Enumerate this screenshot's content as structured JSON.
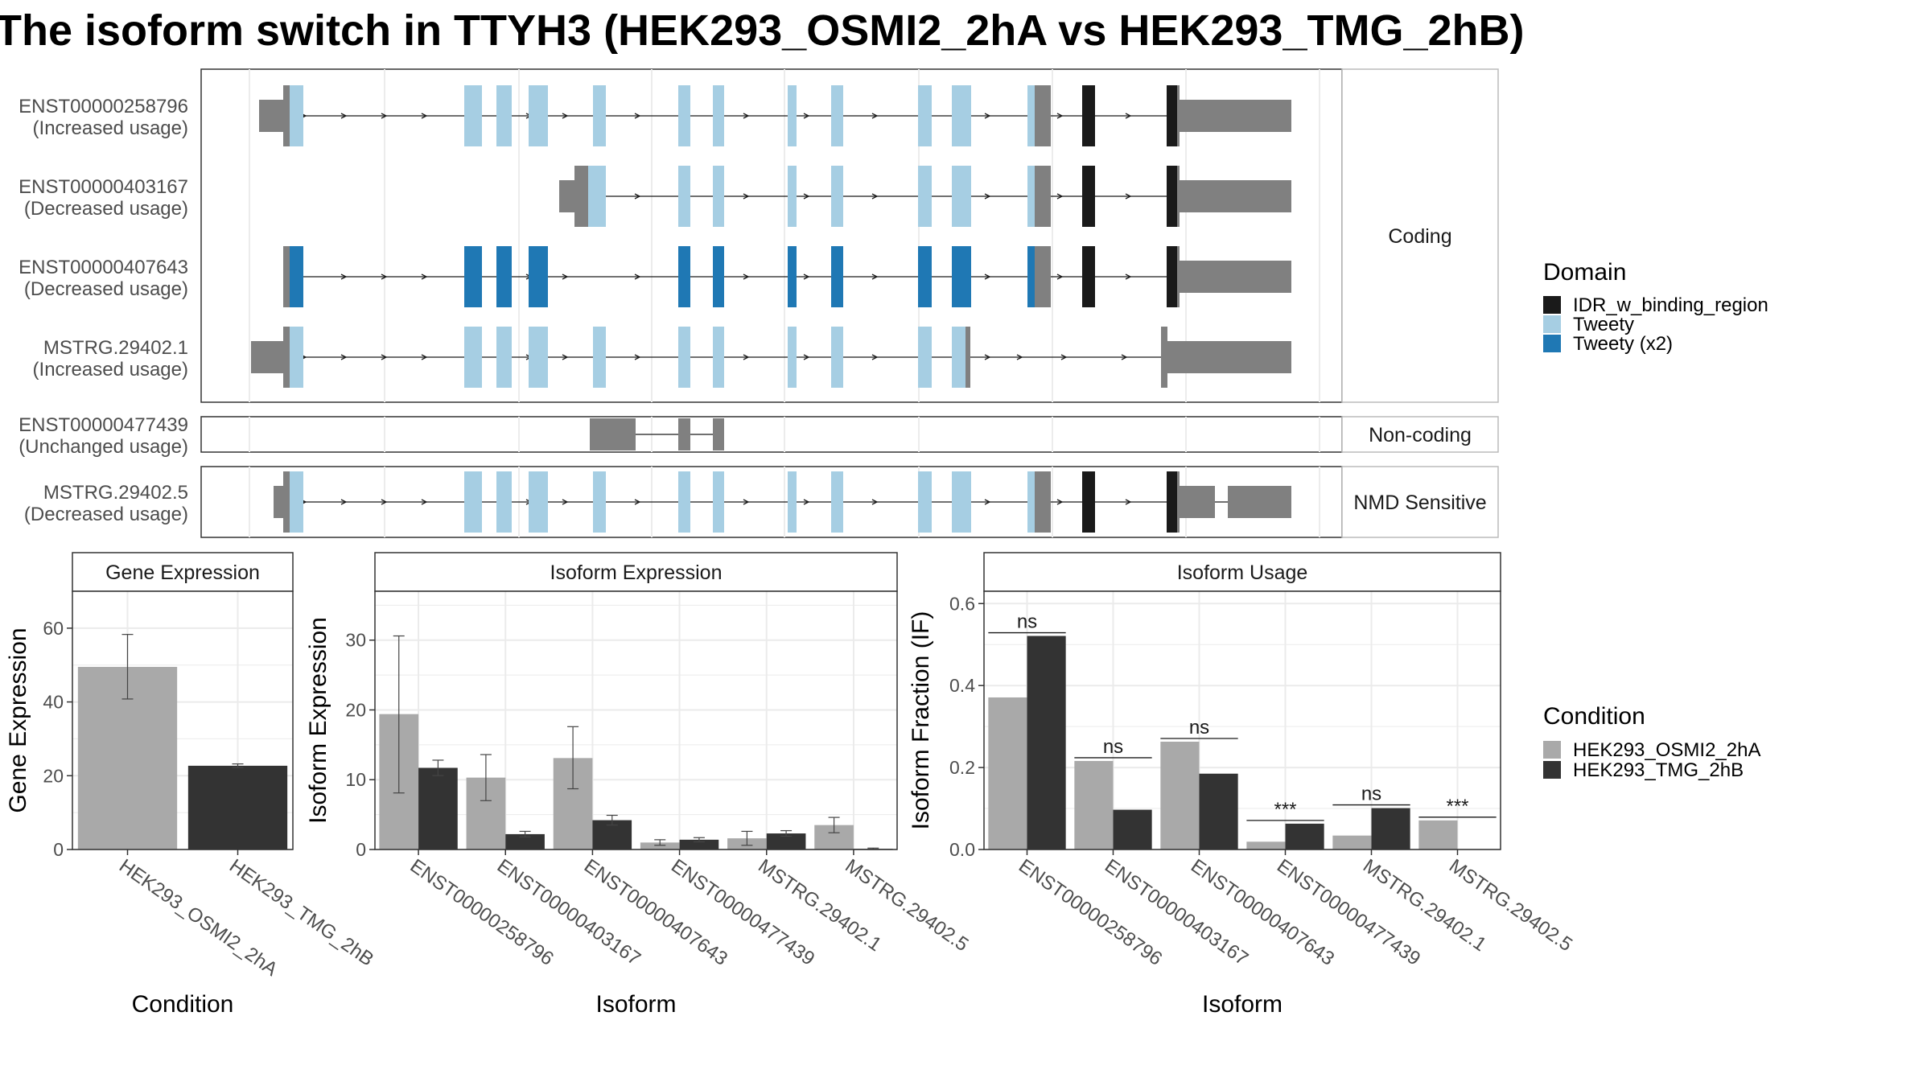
{
  "title": "The isoform switch in TTYH3 (HEK293_OSMI2_2hA vs HEK293_TMG_2hB)",
  "colors": {
    "utr": "#808080",
    "IDR_w_binding_region": "#1a1a1a",
    "Tweety": "#a6cee3",
    "Tweety_x2": "#1f78b4",
    "HEK293_OSMI2_2hA": "#a9a9a9",
    "HEK293_TMG_2hB": "#333333"
  },
  "structure": {
    "facets": [
      "Coding",
      "Non-coding",
      "NMD Sensitive"
    ],
    "transcripts": [
      {
        "id": "ENST00000258796",
        "usage": "(Increased usage)",
        "facet": "Coding",
        "domain": "Tweety"
      },
      {
        "id": "ENST00000403167",
        "usage": "(Decreased usage)",
        "facet": "Coding",
        "domain": "Tweety"
      },
      {
        "id": "ENST00000407643",
        "usage": "(Decreased usage)",
        "facet": "Coding",
        "domain": "Tweety_x2"
      },
      {
        "id": "MSTRG.29402.1",
        "usage": "(Increased usage)",
        "facet": "Coding",
        "domain": "Tweety"
      },
      {
        "id": "ENST00000477439",
        "usage": "(Unchanged usage)",
        "facet": "Non-coding",
        "domain": "none"
      },
      {
        "id": "MSTRG.29402.5",
        "usage": "(Decreased usage)",
        "facet": "NMD Sensitive",
        "domain": "Tweety"
      }
    ],
    "legend": {
      "title": "Domain",
      "items": [
        {
          "key": "IDR_w_binding_region",
          "label": "IDR_w_binding_region"
        },
        {
          "key": "Tweety",
          "label": "Tweety"
        },
        {
          "key": "Tweety_x2",
          "label": "Tweety (x2)"
        }
      ]
    }
  },
  "chart_data": [
    {
      "type": "bar",
      "panel": "Gene Expression",
      "categories": [
        "HEK293_OSMI2_2hA",
        "HEK293_TMG_2hB"
      ],
      "values": [
        49.5,
        22.7
      ],
      "errors": [
        [
          40.8,
          58.3
        ],
        [
          22.2,
          23.2
        ]
      ],
      "xlabel": "Condition",
      "ylabel": "Gene Expression",
      "ylim": [
        0,
        70
      ],
      "yticks": [
        0,
        20,
        40,
        60
      ],
      "grid": true
    },
    {
      "type": "bar",
      "panel": "Isoform Expression",
      "categories": [
        "ENST00000258796",
        "ENST00000403167",
        "ENST00000407643",
        "ENST00000477439",
        "MSTRG.29402.1",
        "MSTRG.29402.5"
      ],
      "series": [
        {
          "name": "HEK293_OSMI2_2hA",
          "values": [
            19.4,
            10.3,
            13.1,
            1.0,
            1.6,
            3.5
          ],
          "errors": [
            [
              8.1,
              30.6
            ],
            [
              7.0,
              13.6
            ],
            [
              8.7,
              17.6
            ],
            [
              0.6,
              1.4
            ],
            [
              0.6,
              2.6
            ],
            [
              2.4,
              4.6
            ]
          ]
        },
        {
          "name": "HEK293_TMG_2hB",
          "values": [
            11.7,
            2.2,
            4.2,
            1.4,
            2.3,
            0.1
          ],
          "errors": [
            [
              10.6,
              12.8
            ],
            [
              1.8,
              2.6
            ],
            [
              3.5,
              4.9
            ],
            [
              1.1,
              1.7
            ],
            [
              1.9,
              2.7
            ],
            [
              0.0,
              0.2
            ]
          ]
        }
      ],
      "xlabel": "Isoform",
      "ylabel": "Isoform Expression",
      "ylim": [
        0,
        37
      ],
      "yticks": [
        0,
        10,
        20,
        30
      ],
      "grid": true
    },
    {
      "type": "bar",
      "panel": "Isoform Usage",
      "categories": [
        "ENST00000258796",
        "ENST00000403167",
        "ENST00000407643",
        "ENST00000477439",
        "MSTRG.29402.1",
        "MSTRG.29402.5"
      ],
      "series": [
        {
          "name": "HEK293_OSMI2_2hA",
          "values": [
            0.371,
            0.216,
            0.263,
            0.019,
            0.034,
            0.071
          ]
        },
        {
          "name": "HEK293_TMG_2hB",
          "values": [
            0.521,
            0.097,
            0.185,
            0.063,
            0.101,
            0.0
          ]
        }
      ],
      "significance": [
        "ns",
        "ns",
        "ns",
        "***",
        "ns",
        "***"
      ],
      "xlabel": "Isoform",
      "ylabel": "Isoform Fraction (IF)",
      "ylim": [
        0,
        0.63
      ],
      "yticks": [
        0.0,
        0.2,
        0.4,
        0.6
      ],
      "grid": true
    }
  ],
  "condition_legend": {
    "title": "Condition",
    "items": [
      {
        "key": "HEK293_OSMI2_2hA",
        "label": "HEK293_OSMI2_2hA"
      },
      {
        "key": "HEK293_TMG_2hB",
        "label": "HEK293_TMG_2hB"
      }
    ]
  }
}
